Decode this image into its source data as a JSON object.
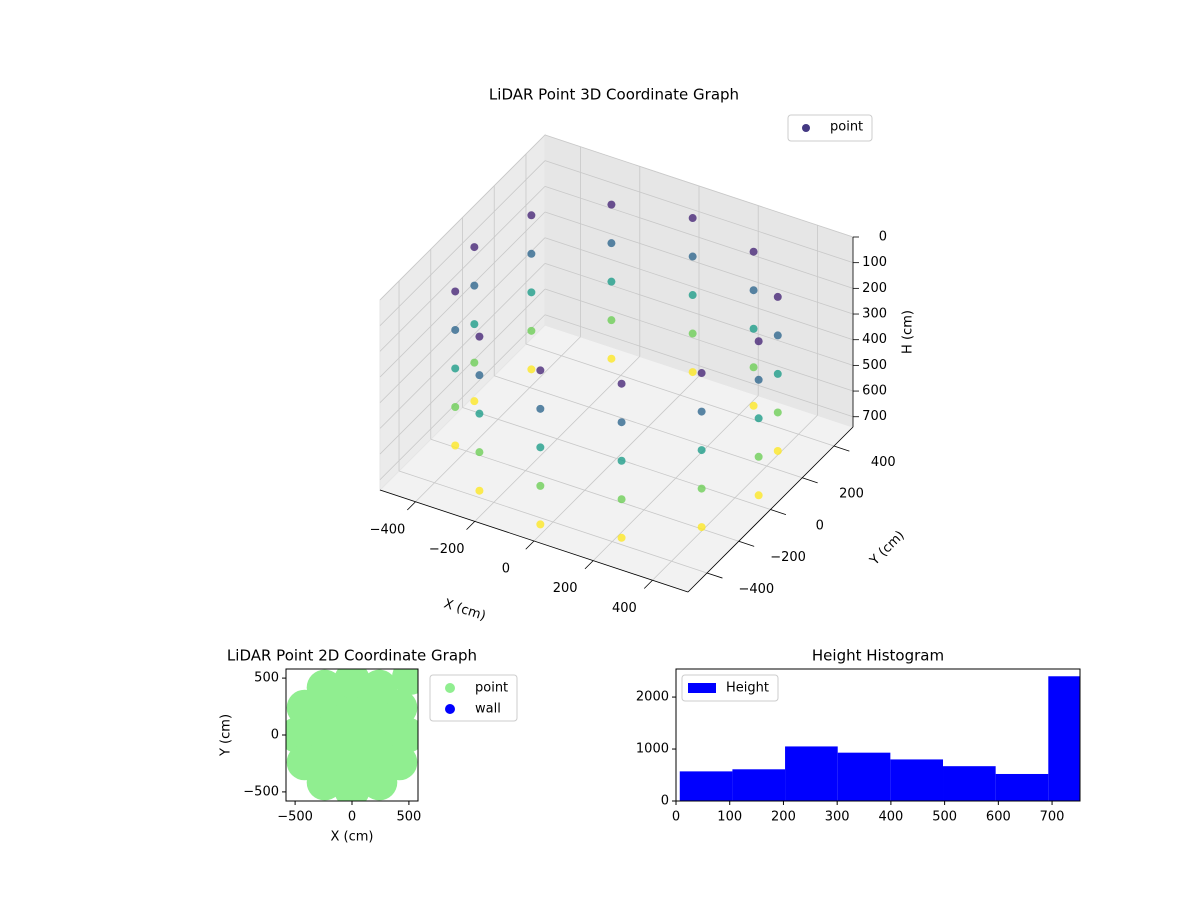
{
  "chart_data": [
    {
      "type": "scatter3d",
      "title": "LiDAR Point 3D Coordinate Graph",
      "xlabel": "X (cm)",
      "ylabel": "Y (cm)",
      "zlabel": "H (cm)",
      "series": [
        {
          "name": "point",
          "color": "#443983",
          "x": [
            480,
            416,
            240,
            0,
            -240,
            -416,
            -480,
            -416,
            -240,
            0,
            240,
            416,
            480,
            416,
            240,
            0,
            -240,
            -416,
            -480,
            -416,
            -240,
            0,
            240,
            416,
            480,
            416,
            240,
            0,
            -240,
            -416,
            -480,
            -416,
            -240,
            0,
            240,
            416,
            480,
            416,
            240,
            0,
            -240,
            -416,
            -480,
            -416,
            -240,
            0,
            240,
            416,
            480,
            416,
            240,
            0,
            -240,
            -416,
            -480,
            -416,
            -240,
            0,
            240,
            416
          ],
          "y": [
            0,
            240,
            416,
            480,
            416,
            240,
            0,
            -240,
            -416,
            -480,
            -416,
            -240,
            0,
            240,
            416,
            480,
            416,
            240,
            0,
            -240,
            -416,
            -480,
            -416,
            -240,
            0,
            240,
            416,
            480,
            416,
            240,
            0,
            -240,
            -416,
            -480,
            -416,
            -240,
            0,
            240,
            416,
            480,
            416,
            240,
            0,
            -240,
            -416,
            -480,
            -416,
            -240,
            0,
            240,
            416,
            480,
            416,
            240,
            0,
            -240,
            -416,
            -480,
            -416,
            -240
          ],
          "z": [
            100,
            100,
            100,
            100,
            100,
            100,
            100,
            100,
            100,
            100,
            100,
            100,
            250,
            250,
            250,
            250,
            250,
            250,
            250,
            250,
            250,
            250,
            250,
            250,
            400,
            400,
            400,
            400,
            400,
            400,
            400,
            400,
            400,
            400,
            400,
            400,
            550,
            550,
            550,
            550,
            550,
            550,
            550,
            550,
            550,
            550,
            550,
            550,
            700,
            700,
            700,
            700,
            700,
            700,
            700,
            700,
            700,
            700,
            700,
            700
          ]
        }
      ],
      "colormap": "viridis",
      "xlim": [
        -520,
        520
      ],
      "ylim": [
        -520,
        520
      ],
      "zlim": [
        0,
        740
      ],
      "zinverted": true,
      "xticks": [
        {
          "value": -400,
          "label": "−400"
        },
        {
          "value": -200,
          "label": "−200"
        },
        0,
        200,
        400
      ],
      "yticks": [
        {
          "value": -400,
          "label": "−400"
        },
        {
          "value": -200,
          "label": "−200"
        },
        0,
        200,
        400
      ],
      "zticks": [
        0,
        100,
        200,
        300,
        400,
        500,
        600,
        700
      ],
      "grid": true,
      "legend": "upper right"
    },
    {
      "type": "scatter",
      "title": "LiDAR Point 2D Coordinate Graph",
      "xlabel": "X (cm)",
      "ylabel": "Y (cm)",
      "series": [
        {
          "name": "point",
          "color": "#90ee90",
          "x": [
            0,
            240,
            208,
            120,
            0,
            -120,
            -208,
            -240,
            -208,
            -120,
            0,
            120,
            208,
            480,
            416,
            240,
            0,
            -240,
            -416,
            -480,
            -416,
            -240,
            0,
            240,
            416,
            510
          ],
          "y": [
            0,
            0,
            120,
            208,
            240,
            208,
            120,
            0,
            -120,
            -208,
            -240,
            -208,
            -120,
            0,
            240,
            416,
            480,
            416,
            240,
            0,
            -240,
            -416,
            -480,
            -416,
            -240,
            510
          ]
        },
        {
          "name": "wall",
          "color": "#0000ff",
          "x": [],
          "y": []
        }
      ],
      "xlim": [
        -580,
        580
      ],
      "ylim": [
        -580,
        580
      ],
      "xticks": [
        {
          "value": -500,
          "label": "−500"
        },
        0,
        500
      ],
      "yticks": [
        {
          "value": -500,
          "label": "−500"
        },
        0,
        500
      ],
      "legend": "outside right"
    },
    {
      "type": "histogram",
      "title": "Height Histogram",
      "bins": [
        7,
        105,
        203,
        301,
        399,
        497,
        595,
        693,
        791
      ],
      "series": [
        {
          "name": "Height",
          "color": "#0000ff",
          "values": [
            570,
            610,
            1050,
            930,
            800,
            670,
            520,
            2400
          ]
        }
      ],
      "xlim": [
        0,
        752
      ],
      "ylim": [
        0,
        2540
      ],
      "xticks": [
        0,
        100,
        200,
        300,
        400,
        500,
        600,
        700
      ],
      "yticks": [
        0,
        1000,
        2000
      ],
      "legend": "upper left"
    }
  ]
}
